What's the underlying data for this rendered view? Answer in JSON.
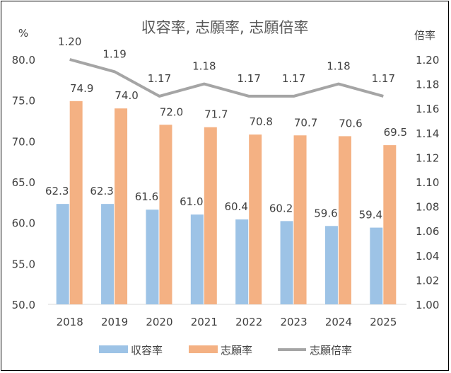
{
  "chart_data": {
    "type": "bar",
    "title": "収容率, 志願率, 志願倍率",
    "categories": [
      "2018",
      "2019",
      "2020",
      "2021",
      "2022",
      "2023",
      "2024",
      "2025"
    ],
    "series": [
      {
        "name": "収容率",
        "type": "bar",
        "axis": "left",
        "color": "#9dc3e6",
        "values": [
          62.3,
          62.3,
          61.6,
          61.0,
          60.4,
          60.2,
          59.6,
          59.4
        ]
      },
      {
        "name": "志願率",
        "type": "bar",
        "axis": "left",
        "color": "#f4b183",
        "values": [
          74.9,
          74.0,
          72.0,
          71.7,
          70.8,
          70.7,
          70.6,
          69.5
        ]
      },
      {
        "name": "志願倍率",
        "type": "line",
        "axis": "right",
        "color": "#a5a5a5",
        "values": [
          1.2,
          1.19,
          1.17,
          1.18,
          1.17,
          1.17,
          1.18,
          1.17
        ]
      }
    ],
    "y_left": {
      "label": "%",
      "ylim": [
        50.0,
        80.0
      ],
      "ticks": [
        "50.0",
        "55.0",
        "60.0",
        "65.0",
        "70.0",
        "75.0",
        "80.0"
      ]
    },
    "y_right": {
      "label": "倍率",
      "ylim": [
        1.0,
        1.2
      ],
      "ticks": [
        "1.00",
        "1.02",
        "1.04",
        "1.06",
        "1.08",
        "1.10",
        "1.12",
        "1.14",
        "1.16",
        "1.18",
        "1.20"
      ]
    },
    "grid": false,
    "legend": "bottom"
  }
}
